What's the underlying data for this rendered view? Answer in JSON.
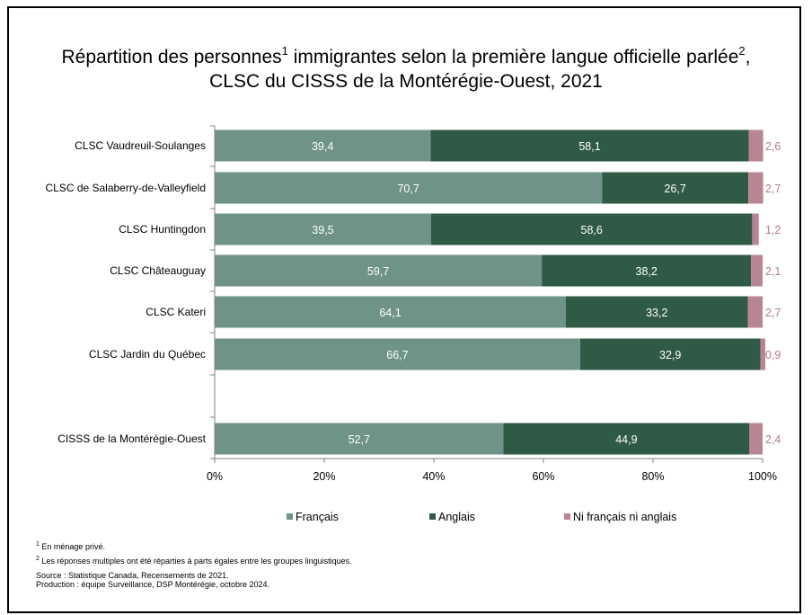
{
  "title": {
    "line1_part1": "Répartition des personnes",
    "sup1": "1",
    "line1_part2": " immigrantes selon la première langue officielle parlée",
    "sup2": "2",
    "line1_part3": ",",
    "line2": "CLSC du CISSS de la Montérégie-Ouest, 2021"
  },
  "chart_data": {
    "type": "bar",
    "orientation": "horizontal",
    "stacked": true,
    "categories": [
      "CLSC Vaudreuil-Soulanges",
      "CLSC de Salaberry-de-Valleyfield",
      "CLSC Huntingdon",
      "CLSC Châteauguay",
      "CLSC Kateri",
      "CLSC Jardin du Québec",
      "CISSS de la Montérégie-Ouest"
    ],
    "series": [
      {
        "name": "Français",
        "color": "#6f9389",
        "label_color": "#ffffff",
        "values": [
          39.4,
          70.7,
          39.5,
          59.7,
          64.1,
          66.7,
          52.7
        ],
        "labels": [
          "39,4",
          "70,7",
          "39,5",
          "59,7",
          "64,1",
          "66,7",
          "52,7"
        ]
      },
      {
        "name": "Anglais",
        "color": "#2f5a45",
        "label_color": "#ffffff",
        "values": [
          58.1,
          26.7,
          58.6,
          38.2,
          33.2,
          32.9,
          44.9
        ],
        "labels": [
          "58,1",
          "26,7",
          "58,6",
          "38,2",
          "33,2",
          "32,9",
          "44,9"
        ]
      },
      {
        "name": "Ni français ni anglais",
        "color": "#b98593",
        "label_color": "#b57a89",
        "values": [
          2.6,
          2.7,
          1.2,
          2.1,
          2.7,
          0.9,
          2.4
        ],
        "labels": [
          "2,6",
          "2,7",
          "1,2",
          "2,1",
          "2,7",
          "0,9",
          "2,4"
        ]
      }
    ],
    "x_ticks": [
      "0%",
      "20%",
      "40%",
      "60%",
      "80%",
      "100%"
    ],
    "xlim": [
      0,
      100
    ],
    "grid": false,
    "legend_position": "bottom"
  },
  "notes": {
    "n1_sup": "1",
    "n1": " En ménage privé.",
    "n2_sup": "2",
    "n2": " Les réponses multiples ont été réparties à parts égales entre les groupes linguistiques.",
    "source": "Source : Statistique Canada, Recensements de 2021.",
    "production": "Production : équipe Surveillance, DSP Montérégie, octobre 2024."
  }
}
